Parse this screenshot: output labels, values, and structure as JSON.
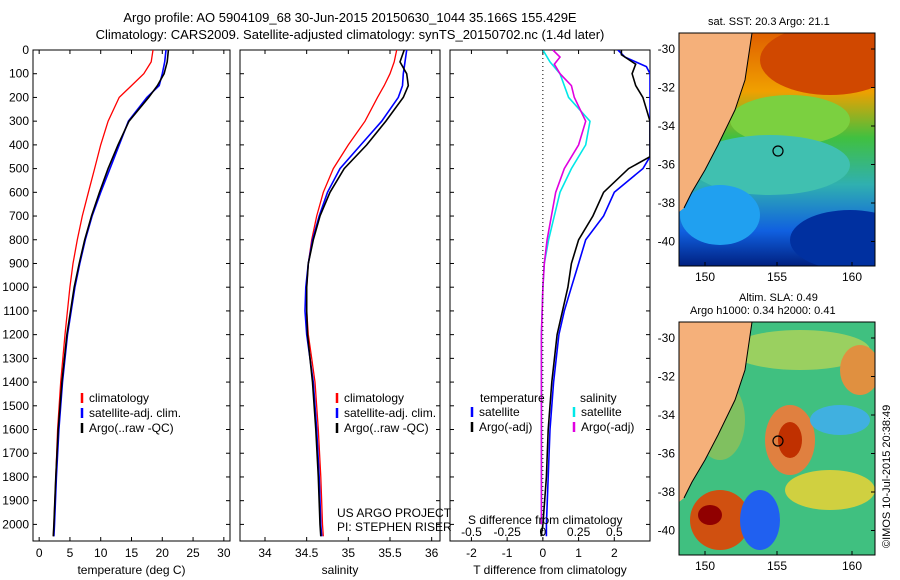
{
  "header": {
    "line1": "Argo profile: AO 5904109_68 30-Jun-2015 20150630_1044 35.166S 155.429E",
    "line2": "Climatology: CARS2009. Satellite-adjusted climatology: synTS_20150702.nc (1.4d later)"
  },
  "colors": {
    "climatology": "#ff0000",
    "satellite": "#0000ff",
    "argo": "#000000",
    "salinity_sat": "#00e8e8",
    "salinity_argo": "#e000e0"
  },
  "chart_data": [
    {
      "type": "line",
      "name": "temperature",
      "xlabel": "temperature (deg C)",
      "ylabel": "",
      "xlim": [
        -1,
        31
      ],
      "ylim": [
        2070,
        0
      ],
      "xticks": [
        0,
        5,
        10,
        15,
        20,
        25,
        30
      ],
      "yticks": [
        0,
        100,
        200,
        300,
        400,
        500,
        600,
        700,
        800,
        900,
        1000,
        1100,
        1200,
        1300,
        1400,
        1500,
        1600,
        1700,
        1800,
        1900,
        2000
      ],
      "legend": [
        "climatology",
        "satellite-adj. clim.",
        "Argo(..raw -QC)"
      ],
      "series": [
        {
          "name": "climatology",
          "depth": [
            0,
            50,
            100,
            150,
            200,
            300,
            400,
            500,
            600,
            700,
            800,
            900,
            1000,
            1200,
            1400,
            1600,
            1800,
            2000,
            2050
          ],
          "values": [
            18.5,
            18.2,
            17.0,
            15.0,
            13.0,
            11.2,
            10.0,
            9.0,
            8.0,
            7.0,
            6.2,
            5.5,
            5.0,
            4.2,
            3.5,
            3.0,
            2.7,
            2.4,
            2.3
          ]
        },
        {
          "name": "satellite-adj. clim.",
          "depth": [
            0,
            50,
            100,
            150,
            200,
            300,
            400,
            500,
            600,
            700,
            800,
            900,
            1000,
            1200,
            1400,
            1600,
            1800,
            2000,
            2050
          ],
          "values": [
            20.6,
            20.4,
            20.0,
            19.5,
            17.5,
            14.5,
            13.0,
            11.5,
            10.0,
            8.6,
            7.5,
            6.6,
            5.8,
            4.6,
            3.8,
            3.2,
            2.8,
            2.5,
            2.4
          ]
        },
        {
          "name": "Argo(..raw -QC)",
          "depth": [
            0,
            50,
            100,
            150,
            200,
            300,
            400,
            500,
            600,
            700,
            800,
            900,
            1000,
            1200,
            1400,
            1600,
            1800,
            2000,
            2050
          ],
          "values": [
            21.0,
            20.8,
            20.3,
            19.2,
            17.8,
            14.6,
            12.8,
            11.2,
            9.8,
            8.5,
            7.4,
            6.5,
            5.7,
            4.5,
            3.7,
            3.1,
            2.7,
            2.4,
            2.3
          ]
        }
      ]
    },
    {
      "type": "line",
      "name": "salinity",
      "xlabel": "salinity",
      "ylabel": "",
      "xlim": [
        33.7,
        36.1
      ],
      "ylim": [
        2070,
        0
      ],
      "xticks": [
        34,
        34.5,
        35,
        35.5,
        36
      ],
      "legend": [
        "climatology",
        "satellite-adj. clim.",
        "Argo(..raw -QC)"
      ],
      "credit": [
        "US ARGO PROJECT",
        "PI: STEPHEN RISER"
      ],
      "series": [
        {
          "name": "climatology",
          "depth": [
            0,
            50,
            100,
            150,
            200,
            300,
            400,
            500,
            600,
            700,
            800,
            900,
            1000,
            1100,
            1200,
            1300,
            1400,
            1600,
            1800,
            2000,
            2050
          ],
          "values": [
            35.58,
            35.55,
            35.5,
            35.43,
            35.35,
            35.2,
            35.0,
            34.82,
            34.7,
            34.62,
            34.56,
            34.52,
            34.5,
            34.5,
            34.52,
            34.56,
            34.6,
            34.64,
            34.67,
            34.69,
            34.7
          ]
        },
        {
          "name": "satellite-adj. clim.",
          "depth": [
            0,
            50,
            100,
            150,
            200,
            300,
            400,
            500,
            600,
            700,
            800,
            900,
            1000,
            1100,
            1200,
            1300,
            1400,
            1600,
            1800,
            2000,
            2050
          ],
          "values": [
            35.7,
            35.68,
            35.66,
            35.65,
            35.6,
            35.4,
            35.15,
            34.9,
            34.75,
            34.65,
            34.57,
            34.52,
            34.49,
            34.48,
            34.5,
            34.54,
            34.58,
            34.62,
            34.65,
            34.67,
            34.68
          ]
        },
        {
          "name": "Argo(..raw -QC)",
          "depth": [
            0,
            50,
            100,
            150,
            200,
            300,
            400,
            500,
            600,
            700,
            800,
            900,
            1000,
            1100,
            1200,
            1300,
            1400,
            1600,
            1800,
            2000,
            2050
          ],
          "values": [
            35.67,
            35.62,
            35.7,
            35.72,
            35.66,
            35.45,
            35.22,
            34.95,
            34.78,
            34.66,
            34.58,
            34.52,
            34.5,
            34.5,
            34.51,
            34.54,
            34.57,
            34.61,
            34.64,
            34.66,
            34.67
          ]
        }
      ]
    },
    {
      "type": "line",
      "name": "difference",
      "xlabel": "T difference from climatology",
      "x2label": "S difference from climatology",
      "xlim": [
        -2.6,
        3.0
      ],
      "ylim": [
        2070,
        0
      ],
      "xticks": [
        -2,
        -1,
        0,
        1,
        2
      ],
      "x2ticks": [
        "-0.5",
        "-0.25",
        "0",
        "0.25",
        "0.5"
      ],
      "legend_temperature_title": "temperature",
      "legend_salinity_title": "salinity",
      "legend": [
        "satellite",
        "Argo(-adj)",
        "satellite",
        "Argo(-adj)"
      ],
      "series": [
        {
          "name": "T satellite",
          "depth": [
            0,
            30,
            50,
            70,
            100,
            150,
            200,
            300,
            400,
            450,
            500,
            600,
            700,
            800,
            900,
            1000,
            1100,
            1200,
            1400,
            1600,
            1800,
            2000,
            2050
          ],
          "values": [
            2.1,
            2.3,
            2.6,
            2.9,
            3.0,
            3.0,
            3.0,
            3.0,
            3.0,
            3.0,
            2.8,
            2.0,
            1.7,
            1.2,
            1.0,
            0.8,
            0.6,
            0.45,
            0.3,
            0.2,
            0.15,
            0.1,
            0.1
          ]
        },
        {
          "name": "T Argo(-adj)",
          "depth": [
            0,
            20,
            40,
            60,
            100,
            150,
            200,
            300,
            400,
            450,
            500,
            600,
            700,
            800,
            900,
            1000,
            1100,
            1200,
            1400,
            1600,
            1800,
            2000,
            2050
          ],
          "values": [
            2.2,
            2.2,
            2.4,
            2.6,
            2.5,
            2.6,
            2.8,
            3.0,
            3.0,
            3.0,
            2.4,
            1.7,
            1.4,
            1.0,
            0.8,
            0.7,
            0.55,
            0.4,
            0.25,
            0.15,
            0.1,
            0.0,
            -0.05
          ]
        },
        {
          "name": "S satellite",
          "depth": [
            0,
            50,
            100,
            150,
            200,
            300,
            400,
            500,
            600,
            700,
            800,
            900,
            1000,
            1200,
            1400,
            1600,
            1800,
            2000
          ],
          "values": [
            0.0,
            0.05,
            0.12,
            0.15,
            0.18,
            0.33,
            0.3,
            0.2,
            0.12,
            0.08,
            0.04,
            0.01,
            0.0,
            -0.01,
            -0.01,
            -0.01,
            -0.01,
            -0.01
          ]
        },
        {
          "name": "S Argo(-adj)",
          "depth": [
            0,
            30,
            60,
            100,
            150,
            200,
            300,
            400,
            500,
            600,
            700,
            800,
            900,
            1000,
            1200,
            1400,
            1600,
            1800,
            2000
          ],
          "values": [
            0.07,
            0.12,
            0.08,
            0.12,
            0.2,
            0.22,
            0.3,
            0.25,
            0.15,
            0.09,
            0.06,
            0.03,
            0.01,
            0.0,
            -0.01,
            -0.01,
            -0.01,
            -0.01,
            -0.01
          ]
        }
      ]
    },
    {
      "type": "heatmap",
      "name": "sst-map",
      "title": "sat. SST: 20.3 Argo: 21.1",
      "xticks": [
        "150",
        "155",
        "160"
      ],
      "yticks": [
        "-30",
        "-32",
        "-34",
        "-36",
        "-38",
        "-40"
      ]
    },
    {
      "type": "heatmap",
      "name": "sla-map",
      "title_line1": "Altim. SLA: 0.49",
      "title_line2": "Argo h1000: 0.34 h2000: 0.41",
      "xticks": [
        "150",
        "155",
        "160"
      ],
      "yticks": [
        "-30",
        "-32",
        "-34",
        "-36",
        "-38",
        "-40"
      ]
    }
  ],
  "footer": {
    "stamp": "©IMOS 10-Jul-2015 20:38:49"
  }
}
